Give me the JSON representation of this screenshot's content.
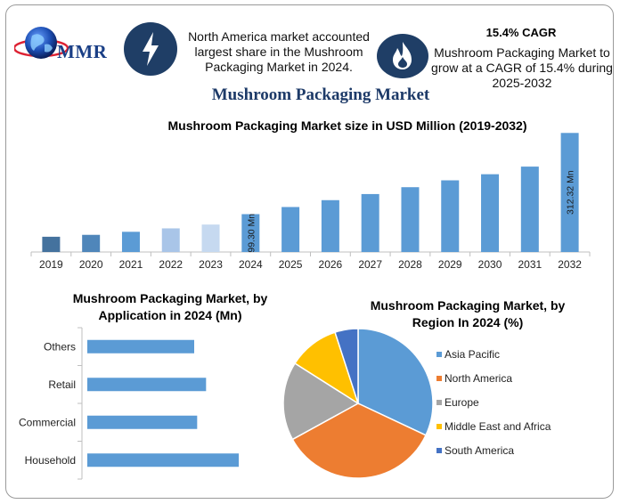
{
  "brand": {
    "logo_text": "MMR",
    "logo_icon": "globe-icon"
  },
  "highlights": [
    {
      "icon": "lightning-icon",
      "text_lines": [
        "North America market accounted",
        "largest share in the Mushroom",
        "Packaging Market in 2024."
      ]
    },
    {
      "icon": "flame-icon",
      "title": "15.4% CAGR",
      "text_lines": [
        "Mushroom Packaging Market to",
        "grow at a CAGR of 15.4% during",
        "2025-2032"
      ]
    }
  ],
  "main_title": "Mushroom Packaging Market",
  "colors": {
    "dark_navy": "#1f3e66",
    "bar_blue": "#5b9bd5",
    "bar_dark": "#44729e",
    "bar_light": "#a9c5e8",
    "bar_lighter": "#c6d9f0"
  },
  "chart_data": [
    {
      "type": "bar",
      "title": "Mushroom Packaging Market size in USD Million (2019-2032)",
      "categories": [
        "2019",
        "2020",
        "2021",
        "2022",
        "2023",
        "2024",
        "2025",
        "2026",
        "2027",
        "2028",
        "2029",
        "2030",
        "2031",
        "2032"
      ],
      "values": [
        40,
        45,
        53,
        62,
        72,
        99.3,
        118,
        136,
        152,
        170,
        188,
        204,
        224,
        312.32
      ],
      "bar_colors": [
        "#44729e",
        "#4f86ba",
        "#5b9bd5",
        "#a9c5e8",
        "#c6d9f0",
        "#5b9bd5",
        "#5b9bd5",
        "#5b9bd5",
        "#5b9bd5",
        "#5b9bd5",
        "#5b9bd5",
        "#5b9bd5",
        "#5b9bd5",
        "#5b9bd5"
      ],
      "annotations": [
        {
          "category": "2024",
          "text": "99.30 Mn"
        },
        {
          "category": "2032",
          "text": "312.32 Mn"
        }
      ],
      "ylim": [
        0,
        320
      ],
      "grid": false
    },
    {
      "type": "bar",
      "orientation": "horizontal",
      "title_lines": [
        "Mushroom Packaging Market, by",
        "Application in 2024 (Mn)"
      ],
      "categories": [
        "Others",
        "Retail",
        "Commercial",
        "Household"
      ],
      "values": [
        18,
        20,
        18.5,
        25.5
      ],
      "xlim": [
        0,
        30
      ],
      "grid": false
    },
    {
      "type": "pie",
      "title_lines": [
        "Mushroom Packaging Market, by",
        "Region In 2024 (%)"
      ],
      "labels": [
        "Asia Pacific",
        "North America",
        "Europe",
        "Middle East and Africa",
        "South America"
      ],
      "values": [
        32,
        35,
        17,
        11,
        5
      ],
      "colors": [
        "#5b9bd5",
        "#ed7d31",
        "#a5a5a5",
        "#ffc000",
        "#4472c4"
      ],
      "legend": "right"
    }
  ]
}
